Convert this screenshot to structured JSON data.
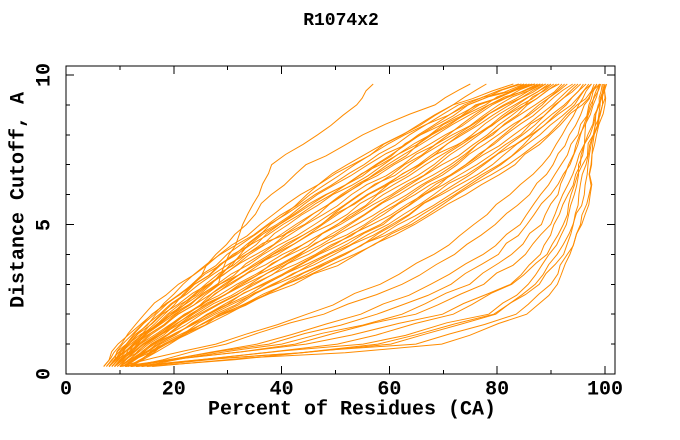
{
  "colors": {
    "curve": "#ff8c00",
    "axis": "#000000",
    "background": "#ffffff",
    "text": "#000000"
  },
  "chart_data": {
    "type": "line",
    "title": "R1074x2",
    "xlabel": "Percent of Residues (CA)",
    "ylabel": "Distance Cutoff, A",
    "xlim": [
      0,
      102
    ],
    "ylim": [
      0,
      10.3
    ],
    "grid": false,
    "legend": "none",
    "x_major_ticks": [
      0,
      20,
      40,
      60,
      80,
      100
    ],
    "x_minor_step": 10,
    "y_major_ticks": [
      0,
      5,
      10
    ],
    "y_minor_step": 1,
    "x_tick_labels": [
      "0",
      "20",
      "40",
      "60",
      "80",
      "100"
    ],
    "y_tick_labels": [
      "0",
      "5",
      "10"
    ],
    "series_color": "#ff8c00",
    "y_levels": [
      0.25,
      1,
      2,
      3,
      4,
      5,
      6,
      7,
      8,
      9,
      9.7
    ],
    "curves": [
      [
        9,
        13,
        20,
        28,
        30.5,
        33,
        35.5,
        38,
        47,
        54,
        57
      ],
      [
        8,
        12,
        18,
        24,
        28,
        33,
        38,
        45,
        55,
        68,
        75
      ],
      [
        9,
        13,
        20,
        27,
        32,
        38,
        45,
        52,
        62,
        72,
        78
      ],
      [
        8,
        12,
        19,
        26,
        33,
        40,
        48,
        58,
        68,
        78,
        85
      ],
      [
        9,
        14,
        22,
        30,
        38,
        47,
        56,
        66,
        76,
        84,
        90
      ],
      [
        7,
        10,
        15,
        21,
        28,
        36,
        44,
        53,
        62,
        72,
        83
      ],
      [
        7,
        10,
        16,
        23,
        30,
        38,
        46,
        55,
        64,
        73,
        84
      ],
      [
        7.5,
        11,
        16,
        22,
        29,
        37,
        45,
        54,
        63,
        74,
        84.5
      ],
      [
        7.5,
        11,
        17,
        24,
        31,
        39,
        47,
        56,
        65,
        74,
        85
      ],
      [
        8,
        11,
        16,
        23,
        31,
        40,
        48,
        57,
        66,
        75,
        85.5
      ],
      [
        8,
        11.5,
        17,
        24,
        32,
        40,
        49,
        58,
        66,
        76,
        86
      ],
      [
        8,
        12,
        18,
        25,
        33,
        41,
        50,
        59,
        67,
        76,
        86.5
      ],
      [
        8,
        12,
        18,
        26,
        34,
        43,
        51,
        60,
        68,
        77,
        87
      ],
      [
        8.5,
        12,
        19,
        26,
        34,
        43,
        51,
        60,
        69,
        78,
        87
      ],
      [
        8.5,
        13,
        19,
        27,
        35,
        44,
        52,
        61,
        70,
        79,
        87.5
      ],
      [
        8.5,
        13,
        20,
        28,
        36,
        45,
        53,
        62,
        71,
        79,
        88
      ],
      [
        9,
        13,
        20,
        28,
        37,
        46,
        54,
        63,
        72,
        80,
        88
      ],
      [
        9,
        13,
        21,
        29,
        38,
        47,
        55,
        64,
        72,
        81,
        88.5
      ],
      [
        9,
        14,
        21,
        29,
        39,
        48,
        56,
        65,
        73,
        82,
        89
      ],
      [
        9,
        14,
        22,
        30,
        39,
        49,
        57,
        66,
        74,
        82,
        89
      ],
      [
        9.5,
        14,
        22,
        31,
        40,
        50,
        58,
        67,
        75,
        83,
        89.5
      ],
      [
        9.5,
        14.5,
        22.5,
        31.5,
        41,
        50.5,
        59,
        68,
        76,
        84,
        90
      ],
      [
        10,
        15,
        23,
        32,
        42,
        51,
        60,
        69,
        77,
        85,
        90.5
      ],
      [
        10,
        15,
        23,
        33,
        43,
        52,
        61,
        70,
        78,
        85,
        91
      ],
      [
        10,
        15,
        24,
        33,
        43,
        53,
        62,
        71,
        79,
        86,
        91.5
      ],
      [
        10,
        16,
        24,
        34,
        44,
        54,
        63,
        72,
        79,
        87,
        92
      ],
      [
        10,
        16,
        25,
        35,
        45,
        55,
        64,
        73,
        80,
        88,
        92.5
      ],
      [
        10.5,
        16,
        25,
        35,
        46,
        56,
        65,
        74,
        81,
        88,
        93
      ],
      [
        10.5,
        16.5,
        26,
        36,
        47,
        57,
        66,
        74,
        82,
        89,
        94
      ],
      [
        11,
        17,
        26,
        37,
        47,
        58,
        66,
        75,
        83,
        90,
        94.5
      ],
      [
        11,
        17,
        27,
        37,
        48,
        59,
        67,
        76,
        84,
        91,
        95
      ],
      [
        11,
        17,
        27,
        38,
        49,
        60,
        68,
        77,
        85,
        91,
        95.5
      ],
      [
        11,
        18,
        28,
        39,
        50,
        60,
        69,
        78,
        86,
        92,
        96
      ],
      [
        11.5,
        18,
        28,
        39,
        51,
        61,
        70,
        79,
        86,
        93,
        96.5
      ],
      [
        11.5,
        18,
        29,
        40,
        52,
        62,
        71,
        80,
        87,
        94,
        97
      ],
      [
        12,
        18,
        29,
        41,
        52,
        63,
        72,
        81,
        88,
        94,
        97.5
      ],
      [
        12,
        19,
        29,
        41,
        53,
        64,
        73,
        82,
        89,
        95,
        98.5
      ],
      [
        12,
        19,
        30,
        42,
        54,
        65,
        74,
        83,
        90,
        96,
        99
      ],
      [
        12,
        55,
        78,
        86,
        90,
        92.5,
        94,
        95.5,
        97,
        98.5,
        99.5
      ],
      [
        13,
        60,
        80,
        88,
        92,
        94,
        95.5,
        96.5,
        97.5,
        99,
        100
      ],
      [
        11,
        45,
        70,
        82,
        88,
        91,
        93,
        95,
        96.5,
        98,
        99
      ],
      [
        14,
        40,
        62,
        75,
        83,
        88,
        91,
        93.5,
        95.5,
        97.5,
        99
      ],
      [
        10,
        35,
        55,
        68,
        77,
        84,
        88.5,
        92,
        94.5,
        97,
        98.5
      ],
      [
        12,
        30,
        48,
        62,
        72,
        80,
        86,
        90,
        93.5,
        96.5,
        98
      ],
      [
        15,
        65,
        83,
        90,
        93.5,
        95.5,
        96.8,
        97.8,
        98.8,
        99.6,
        100.3
      ],
      [
        13,
        50,
        72,
        83,
        89,
        92,
        94,
        96,
        97.5,
        99,
        100
      ],
      [
        11,
        38,
        58,
        71,
        80,
        86,
        90,
        93,
        95.5,
        97.8,
        99.2
      ],
      [
        14,
        58,
        79,
        87,
        91.5,
        94,
        95.8,
        97,
        98.2,
        99.3,
        100
      ],
      [
        12,
        42,
        65,
        78,
        85,
        89.5,
        92.5,
        95,
        96.8,
        98.5,
        99.7
      ],
      [
        10,
        28,
        45,
        58,
        68,
        76,
        82.5,
        88,
        92,
        95.5,
        97.5
      ],
      [
        16,
        70,
        85,
        91,
        94,
        95.5,
        96.5,
        97.5,
        98.5,
        99.3,
        100
      ]
    ]
  }
}
